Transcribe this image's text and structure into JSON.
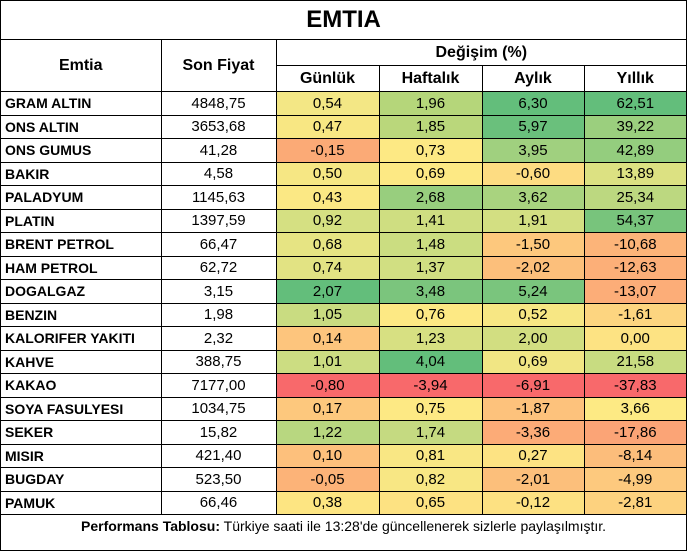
{
  "title": "EMTIA",
  "headers": {
    "name": "Emtia",
    "price": "Son Fiyat",
    "change_group": "Değişim (%)",
    "daily": "Günlük",
    "weekly": "Haftalık",
    "monthly": "Aylık",
    "yearly": "Yıllık"
  },
  "rows": [
    {
      "name": "GRAM ALTIN",
      "price": "4848,75",
      "daily": "0,54",
      "weekly": "1,96",
      "monthly": "6,30",
      "yearly": "62,51",
      "colors": [
        "#f3e785",
        "#b5d67a",
        "#63be7b",
        "#63be7b"
      ]
    },
    {
      "name": "ONS ALTIN",
      "price": "3653,68",
      "daily": "0,47",
      "weekly": "1,85",
      "monthly": "5,97",
      "yearly": "39,22",
      "colors": [
        "#f8e783",
        "#bad77b",
        "#6ac07c",
        "#9bcf7e"
      ]
    },
    {
      "name": "ONS GUMUS",
      "price": "41,28",
      "daily": "-0,15",
      "weekly": "0,73",
      "monthly": "3,95",
      "yearly": "42,89",
      "colors": [
        "#fbaa76",
        "#fde984",
        "#a0d07f",
        "#94cd7e"
      ]
    },
    {
      "name": "BAKIR",
      "price": "4,58",
      "daily": "0,50",
      "weekly": "0,69",
      "monthly": "-0,60",
      "yearly": "13,89",
      "colors": [
        "#f6e784",
        "#fde984",
        "#fddc82",
        "#dce182"
      ]
    },
    {
      "name": "PALADYUM",
      "price": "1145,63",
      "daily": "0,43",
      "weekly": "2,68",
      "monthly": "3,62",
      "yearly": "25,34",
      "colors": [
        "#fbe884",
        "#98ce7e",
        "#a9d37f",
        "#bcd880"
      ]
    },
    {
      "name": "PLATIN",
      "price": "1397,59",
      "daily": "0,92",
      "weekly": "1,41",
      "monthly": "1,91",
      "yearly": "54,37",
      "colors": [
        "#d5e082",
        "#cfde81",
        "#d3df82",
        "#78c47c"
      ]
    },
    {
      "name": "BRENT PETROL",
      "price": "66,47",
      "daily": "0,68",
      "weekly": "1,48",
      "monthly": "-1,50",
      "yearly": "-10,68",
      "colors": [
        "#e6e483",
        "#cbdd81",
        "#fdc87d",
        "#fcb479"
      ]
    },
    {
      "name": "HAM PETROL",
      "price": "62,72",
      "daily": "0,74",
      "weekly": "1,37",
      "monthly": "-2,02",
      "yearly": "-12,63",
      "colors": [
        "#e2e383",
        "#d1df82",
        "#fcbf7b",
        "#fcaf78"
      ]
    },
    {
      "name": "DOGALGAZ",
      "price": "3,15",
      "daily": "2,07",
      "weekly": "3,48",
      "monthly": "5,24",
      "yearly": "-13,07",
      "colors": [
        "#63be7b",
        "#7bc57d",
        "#7ac57d",
        "#fcad78"
      ]
    },
    {
      "name": "BENZIN",
      "price": "1,98",
      "daily": "1,05",
      "weekly": "0,76",
      "monthly": "0,52",
      "yearly": "-1,61",
      "colors": [
        "#c9dc81",
        "#fde984",
        "#f7e784",
        "#fdd580"
      ]
    },
    {
      "name": "KALORIFER YAKITI",
      "price": "2,32",
      "daily": "0,14",
      "weekly": "1,23",
      "monthly": "2,00",
      "yearly": "0,00",
      "colors": [
        "#fdc57d",
        "#d7e082",
        "#d2de81",
        "#fde383"
      ]
    },
    {
      "name": "KAHVE",
      "price": "388,75",
      "daily": "1,01",
      "weekly": "4,04",
      "monthly": "0,69",
      "yearly": "21,58",
      "colors": [
        "#ccdd82",
        "#63be7b",
        "#f1e684",
        "#c8dc81"
      ]
    },
    {
      "name": "KAKAO",
      "price": "7177,00",
      "daily": "-0,80",
      "weekly": "-3,94",
      "monthly": "-6,91",
      "yearly": "-37,83",
      "colors": [
        "#f8696b",
        "#f8696b",
        "#f8696b",
        "#f8696b"
      ]
    },
    {
      "name": "SOYA FASULYESI",
      "price": "1034,75",
      "daily": "0,17",
      "weekly": "0,75",
      "monthly": "-1,87",
      "yearly": "3,66",
      "colors": [
        "#fdc87d",
        "#fde984",
        "#fdc27c",
        "#fdea84"
      ]
    },
    {
      "name": "SEKER",
      "price": "15,82",
      "daily": "1,22",
      "weekly": "1,74",
      "monthly": "-3,36",
      "yearly": "-17,86",
      "colors": [
        "#b8d780",
        "#c5da81",
        "#fcab77",
        "#fba476"
      ]
    },
    {
      "name": "MISIR",
      "price": "421,40",
      "daily": "0,10",
      "weekly": "0,81",
      "monthly": "0,27",
      "yearly": "-8,14",
      "colors": [
        "#fdc07c",
        "#f9e784",
        "#fde383",
        "#fcbd7b"
      ]
    },
    {
      "name": "BUGDAY",
      "price": "523,50",
      "daily": "-0,05",
      "weekly": "0,82",
      "monthly": "-2,01",
      "yearly": "-4,99",
      "colors": [
        "#fcb378",
        "#f8e784",
        "#fcbf7b",
        "#fdc97e"
      ]
    },
    {
      "name": "PAMUK",
      "price": "66,46",
      "daily": "0,38",
      "weekly": "0,65",
      "monthly": "-0,12",
      "yearly": "-2,81",
      "colors": [
        "#fde582",
        "#fde282",
        "#fde182",
        "#fdd27f"
      ]
    }
  ],
  "footer": {
    "label": "Performans Tablosu:",
    "text": " Türkiye saati ile 13:28'de güncellenerek sizlerle paylaşılmıştır."
  }
}
